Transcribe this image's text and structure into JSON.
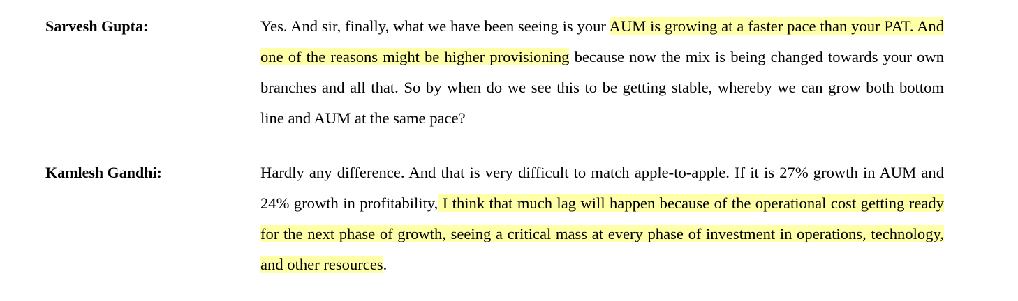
{
  "entries": [
    {
      "speaker": "Sarvesh Gupta:",
      "segments": [
        {
          "text": "Yes. And sir, finally, what we have been seeing is your ",
          "highlight": false
        },
        {
          "text": "AUM is growing at a faster pace than your PAT. And one of the reasons might be higher provisioning",
          "highlight": true
        },
        {
          "text": " because now the mix is being changed towards your own branches and all that. So by when do we see this to be getting stable, whereby we can grow both bottom line and AUM at the same pace?",
          "highlight": false
        }
      ]
    },
    {
      "speaker": "Kamlesh Gandhi:",
      "segments": [
        {
          "text": "Hardly any difference. And that is very difficult to match apple-to-apple. If it is 27% growth in AUM and 24% growth in profitability,",
          "highlight": false
        },
        {
          "text": " I think that much lag will happen because of the operational cost getting ready for the next phase of growth, seeing a critical mass at every phase of investment in operations, technology, and other resources",
          "highlight": true
        },
        {
          "text": ".",
          "highlight": false
        }
      ]
    }
  ]
}
